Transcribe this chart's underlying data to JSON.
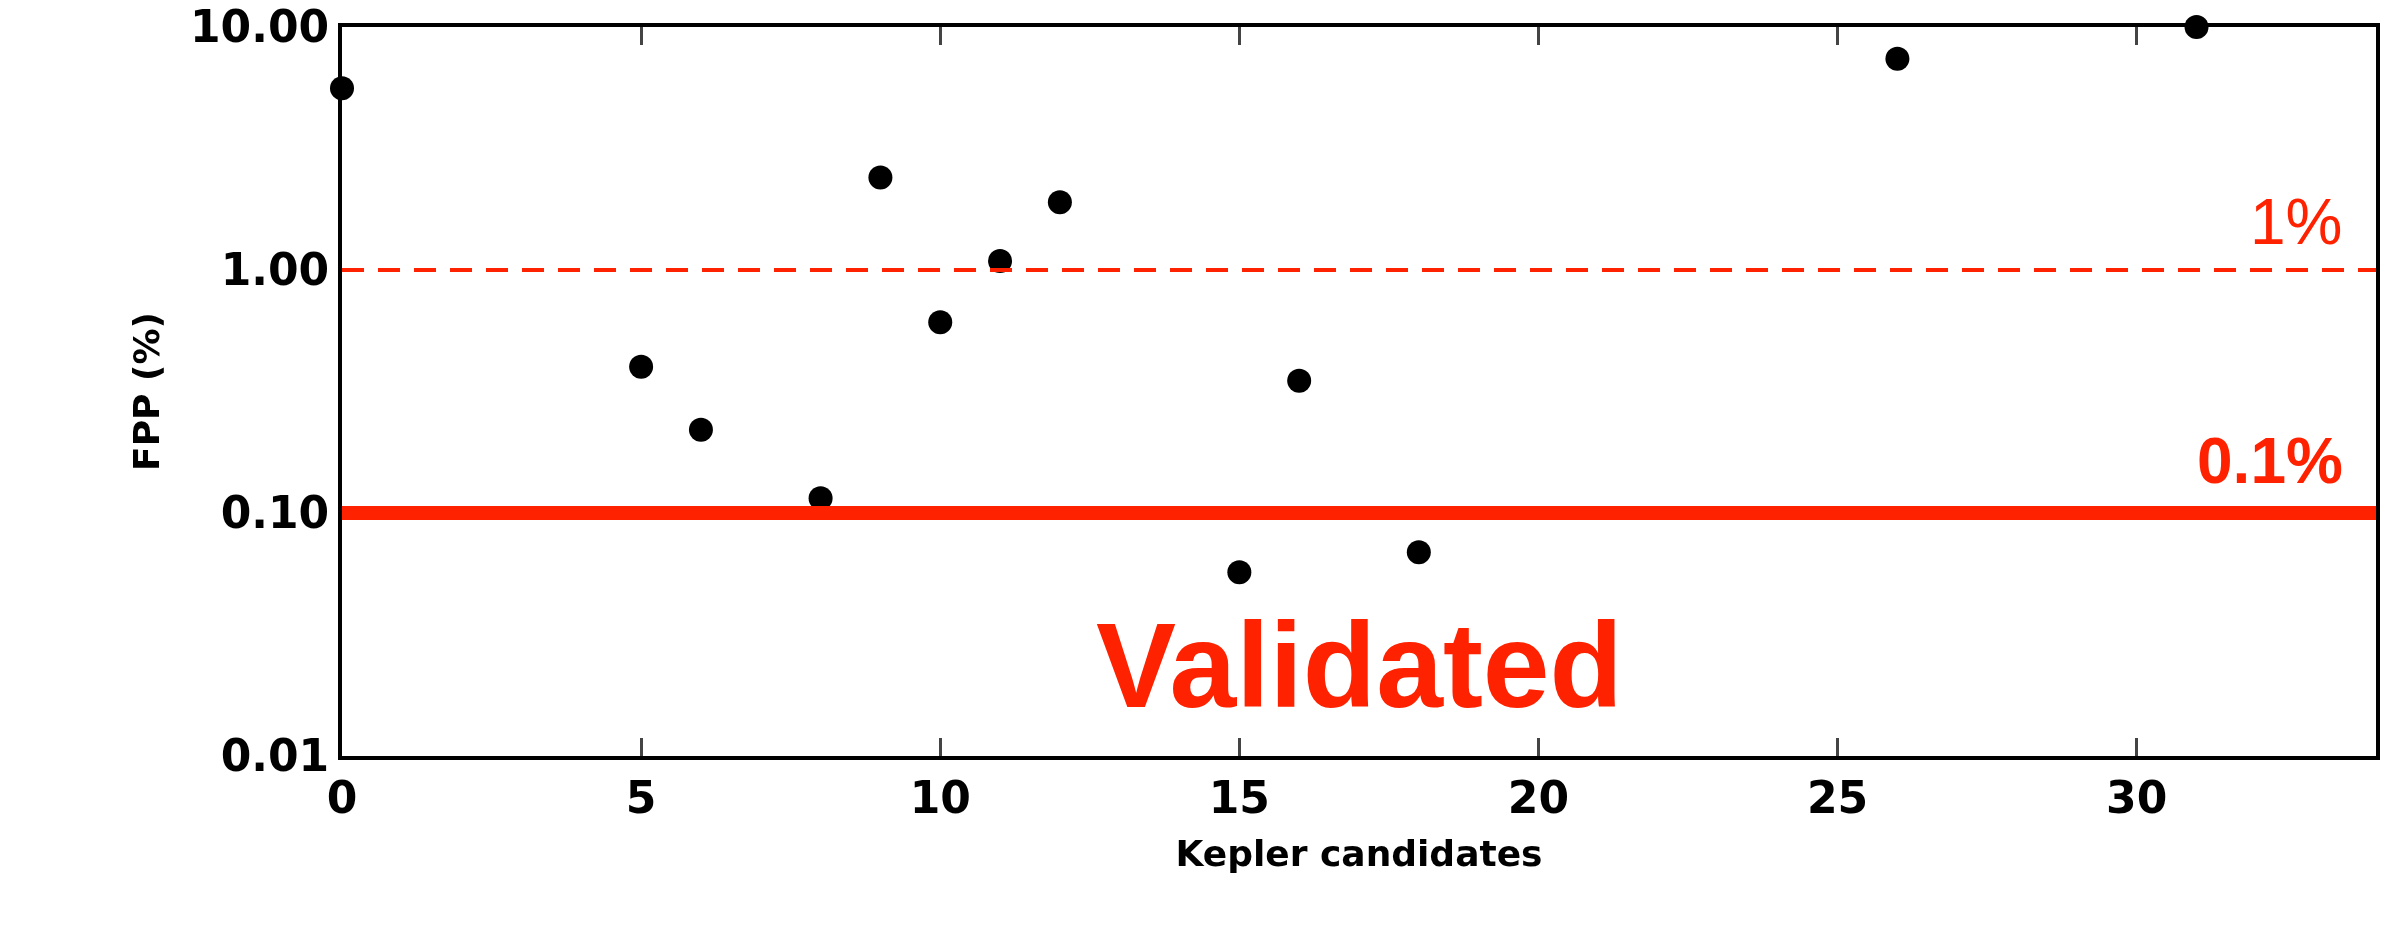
{
  "chart_data": {
    "type": "scatter",
    "xlabel": "Kepler candidates",
    "ylabel": "FPP (%)",
    "x": [
      0,
      5,
      6,
      8,
      9,
      10,
      11,
      12,
      15,
      16,
      18,
      26,
      31
    ],
    "series": [
      {
        "color": "#000000",
        "values": [
          5.6,
          0.4,
          0.22,
          0.115,
          2.4,
          0.61,
          1.09,
          1.9,
          0.057,
          0.35,
          0.069,
          7.4,
          10
        ]
      }
    ],
    "xlim": [
      0,
      34
    ],
    "xticks": [
      0,
      5,
      10,
      15,
      20,
      25,
      30
    ],
    "ylim": [
      0.01,
      10
    ],
    "yticks": [
      {
        "value": 10,
        "label": "10.00"
      },
      {
        "value": 1,
        "label": "1.00"
      },
      {
        "value": 0.1,
        "label": "0.10"
      },
      {
        "value": 0.01,
        "label": "0.01"
      }
    ],
    "log": "y",
    "grid": false,
    "marker": "circle",
    "ref_lines": [
      {
        "axis": "y",
        "value": 1,
        "label": "1%",
        "color": "#ff2200",
        "line_style": "dashed"
      },
      {
        "axis": "y",
        "value": 0.1,
        "label": "0.1%",
        "color": "#ff2200",
        "line_style": "solid"
      }
    ],
    "annotations": [
      "Validated"
    ]
  }
}
